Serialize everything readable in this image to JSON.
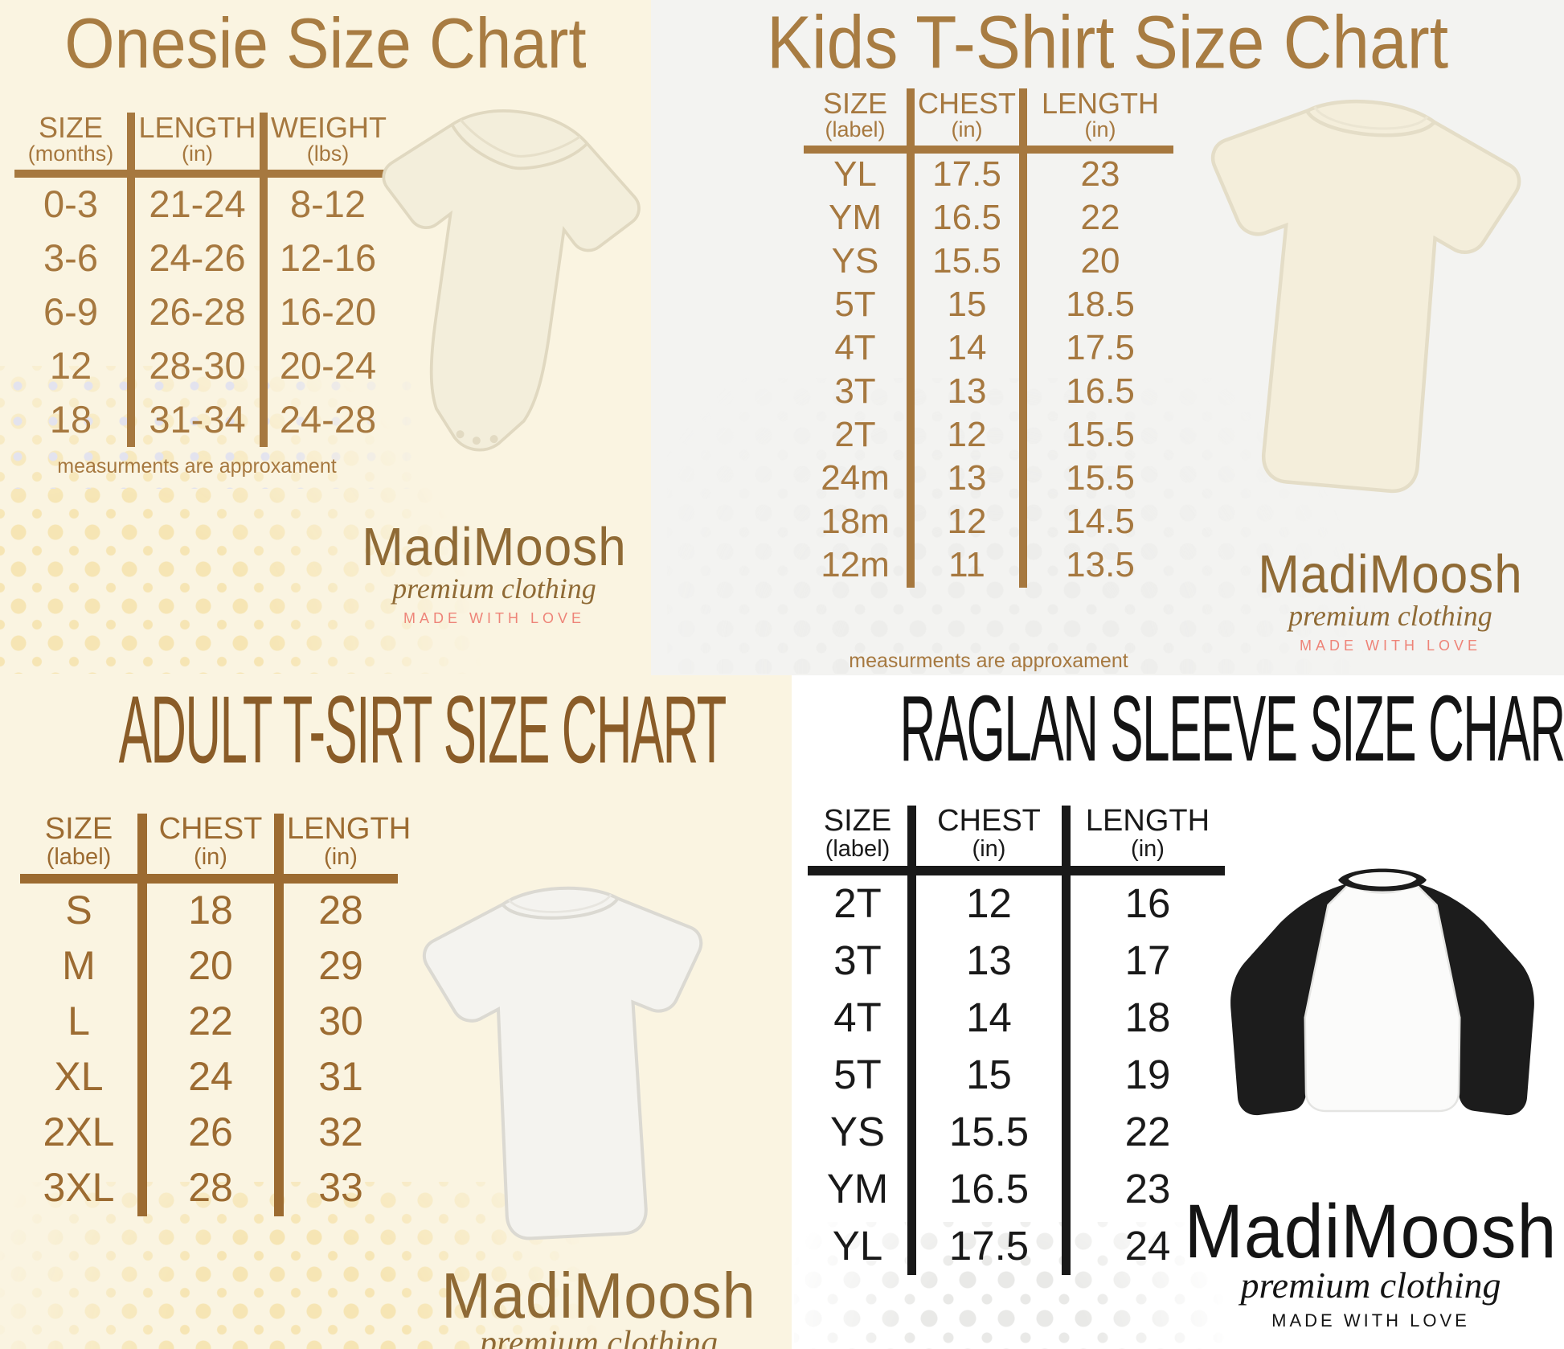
{
  "brand": {
    "name": "MadiMoosh",
    "tagline": "premium clothing",
    "motto": "MADE WITH LOVE"
  },
  "chart_data": [
    {
      "id": "onesie",
      "type": "table",
      "title": "Onesie Size Chart",
      "columns": [
        {
          "label": "SIZE",
          "unit": "(months)"
        },
        {
          "label": "LENGTH",
          "unit": "(in)"
        },
        {
          "label": "WEIGHT",
          "unit": "(lbs)"
        }
      ],
      "rows": [
        [
          "0-3",
          "21-24",
          "8-12"
        ],
        [
          "3-6",
          "24-26",
          "12-16"
        ],
        [
          "6-9",
          "26-28",
          "16-20"
        ],
        [
          "12",
          "28-30",
          "20-24"
        ],
        [
          "18",
          "31-34",
          "24-28"
        ]
      ],
      "note": "measurments are approxament"
    },
    {
      "id": "kids",
      "type": "table",
      "title": "Kids T-Shirt Size Chart",
      "columns": [
        {
          "label": "SIZE",
          "unit": "(label)"
        },
        {
          "label": "CHEST",
          "unit": "(in)"
        },
        {
          "label": "LENGTH",
          "unit": "(in)"
        }
      ],
      "rows": [
        [
          "YL",
          "17.5",
          "23"
        ],
        [
          "YM",
          "16.5",
          "22"
        ],
        [
          "YS",
          "15.5",
          "20"
        ],
        [
          "5T",
          "15",
          "18.5"
        ],
        [
          "4T",
          "14",
          "17.5"
        ],
        [
          "3T",
          "13",
          "16.5"
        ],
        [
          "2T",
          "12",
          "15.5"
        ],
        [
          "24m",
          "13",
          "15.5"
        ],
        [
          "18m",
          "12",
          "14.5"
        ],
        [
          "12m",
          "11",
          "13.5"
        ]
      ],
      "note": "measurments are approxament"
    },
    {
      "id": "adult",
      "type": "table",
      "title": "ADULT T-SIRT SIZE CHART",
      "columns": [
        {
          "label": "SIZE",
          "unit": "(label)"
        },
        {
          "label": "CHEST",
          "unit": "(in)"
        },
        {
          "label": "LENGTH",
          "unit": "(in)"
        }
      ],
      "rows": [
        [
          "S",
          "18",
          "28"
        ],
        [
          "M",
          "20",
          "29"
        ],
        [
          "L",
          "22",
          "30"
        ],
        [
          "XL",
          "24",
          "31"
        ],
        [
          "2XL",
          "26",
          "32"
        ],
        [
          "3XL",
          "28",
          "33"
        ]
      ],
      "note": ""
    },
    {
      "id": "raglan",
      "type": "table",
      "title": "RAGLAN SLEEVE SIZE CHART",
      "columns": [
        {
          "label": "SIZE",
          "unit": "(label)"
        },
        {
          "label": "CHEST",
          "unit": "(in)"
        },
        {
          "label": "LENGTH",
          "unit": "(in)"
        }
      ],
      "rows": [
        [
          "2T",
          "12",
          "16"
        ],
        [
          "3T",
          "13",
          "17"
        ],
        [
          "4T",
          "14",
          "18"
        ],
        [
          "5T",
          "15",
          "19"
        ],
        [
          "YS",
          "15.5",
          "22"
        ],
        [
          "YM",
          "16.5",
          "23"
        ],
        [
          "YL",
          "17.5",
          "24"
        ]
      ],
      "note": ""
    }
  ],
  "colors": {
    "brown": "#a6783f",
    "title_brown": "#a87c42",
    "dark_brown": "#8a5c28",
    "black": "#1a1a1a",
    "pink": "#ee8478",
    "cream_bg": "#faf4e1",
    "gray_bg": "#f3f3f1",
    "white_bg": "#ffffff",
    "dot_yellow": "#f6e5b4",
    "dot_gray": "#e9e9e7",
    "dot_lavender": "#e3e3ee"
  }
}
